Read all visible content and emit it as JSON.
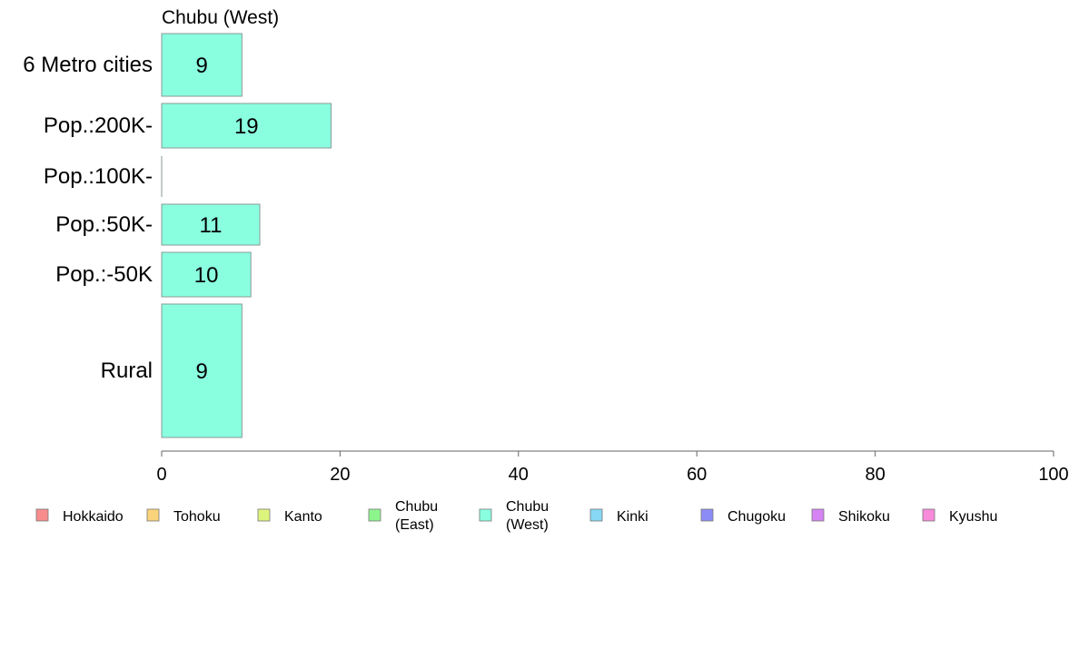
{
  "chart_data": {
    "type": "bar",
    "orientation": "horizontal",
    "title": "Chubu (West)",
    "categories": [
      "6 Metro cities",
      "Pop.:200K-",
      "Pop.:100K-",
      "Pop.:50K-",
      "Pop.:-50K",
      "Rural"
    ],
    "values": [
      9,
      19,
      0,
      11,
      10,
      9
    ],
    "bar_labels": [
      "9",
      "19",
      "",
      "11",
      "10",
      "9"
    ],
    "bar_color": "#8AFFE0",
    "xlim": [
      0,
      100
    ],
    "xticks": [
      0,
      20,
      40,
      60,
      80,
      100
    ],
    "grid": false,
    "legend": {
      "position": "bottom",
      "items": [
        {
          "lines": [
            "Hokkaido"
          ],
          "color": "#F88C8C"
        },
        {
          "lines": [
            "Tohoku"
          ],
          "color": "#FAD37A"
        },
        {
          "lines": [
            "Kanto"
          ],
          "color": "#DDF47C"
        },
        {
          "lines": [
            "Chubu",
            "(East)"
          ],
          "color": "#8CF58C"
        },
        {
          "lines": [
            "Chubu",
            "(West)"
          ],
          "color": "#8AFFE0"
        },
        {
          "lines": [
            "Kinki"
          ],
          "color": "#86D8F4"
        },
        {
          "lines": [
            "Chugoku"
          ],
          "color": "#8C8CF6"
        },
        {
          "lines": [
            "Shikoku"
          ],
          "color": "#D684F4"
        },
        {
          "lines": [
            "Kyushu"
          ],
          "color": "#F88ADA"
        }
      ]
    }
  }
}
